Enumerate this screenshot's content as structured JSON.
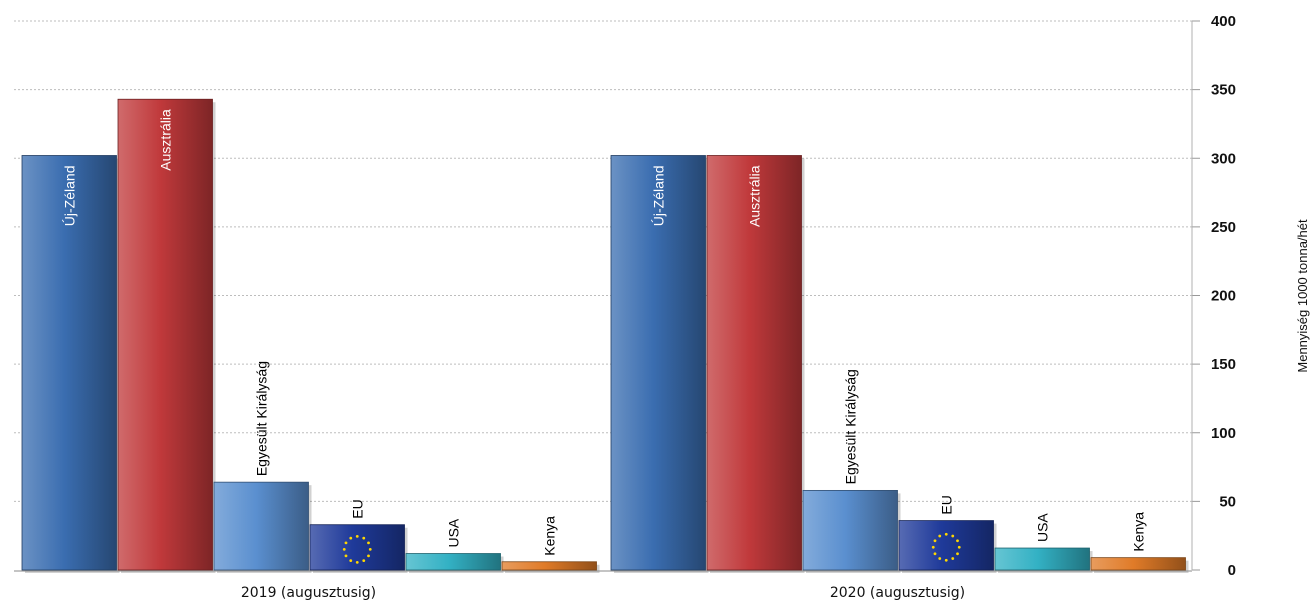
{
  "chart_data": {
    "type": "bar",
    "categories": [
      "2019 (augusztusig)",
      "2020 (augusztusig)"
    ],
    "series": [
      {
        "name": "Új-Zéland",
        "values": [
          302,
          302
        ],
        "color": "#3a6db0",
        "label_color": "#ffffff"
      },
      {
        "name": "Ausztrália",
        "values": [
          343,
          302
        ],
        "color": "#c0393b",
        "label_color": "#ffffff"
      },
      {
        "name": "Egyesült Királyság",
        "values": [
          64,
          58
        ],
        "color": "#5a8fcf",
        "label_color": "#000000"
      },
      {
        "name": "EU",
        "values": [
          33,
          36
        ],
        "color": "#1f3a9a",
        "label_color": "#000000",
        "flag": "eu-flag-icon"
      },
      {
        "name": "USA",
        "values": [
          12,
          16
        ],
        "color": "#33b1c4",
        "label_color": "#000000"
      },
      {
        "name": "Kenya",
        "values": [
          6,
          9
        ],
        "color": "#e07b28",
        "label_color": "#000000"
      }
    ],
    "ylabel": "Mennyiség 1000 tonna/hét",
    "yticks": [
      0,
      50,
      100,
      150,
      200,
      250,
      300,
      350,
      400
    ],
    "ylim": [
      0,
      400
    ],
    "y_axis_side": "right",
    "grid": true,
    "legend": "none (series names written on bars)"
  }
}
